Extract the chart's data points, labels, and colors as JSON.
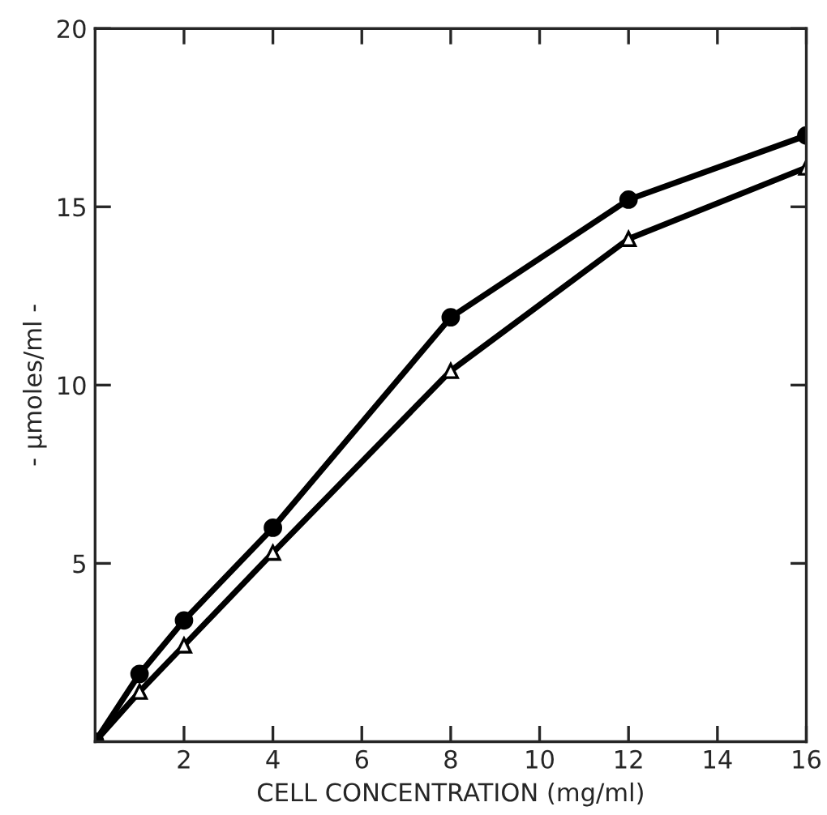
{
  "chart_data": {
    "type": "line",
    "xlabel": "CELL CONCENTRATION (mg/ml)",
    "ylabel": "- µmoles/ml -",
    "xlim": [
      0,
      16
    ],
    "ylim": [
      0,
      20
    ],
    "xticks": [
      2,
      4,
      6,
      8,
      10,
      12,
      14,
      16
    ],
    "yticks": [
      5,
      10,
      15,
      20
    ],
    "grid": false,
    "legend": false,
    "series": [
      {
        "x": [
          0,
          1,
          2,
          4,
          8,
          12,
          16
        ],
        "values": [
          0,
          1.9,
          3.4,
          6.0,
          11.9,
          15.2,
          17.0
        ],
        "color": "#000000",
        "marker": "circle"
      },
      {
        "x": [
          0,
          1,
          2,
          4,
          8,
          12,
          16
        ],
        "values": [
          0,
          1.4,
          2.7,
          5.3,
          10.4,
          14.1,
          16.1
        ],
        "color": "#000000",
        "marker": "triangle"
      }
    ]
  }
}
